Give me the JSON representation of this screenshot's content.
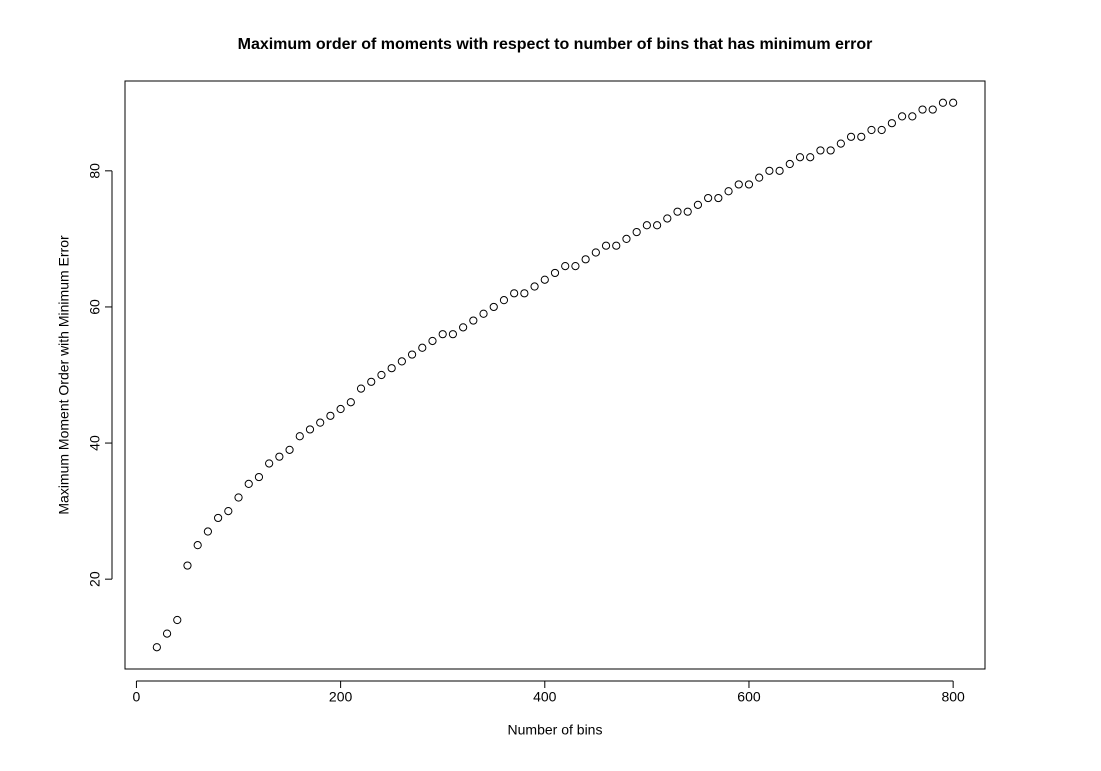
{
  "chart_data": {
    "type": "scatter",
    "title": "Maximum order of moments with respect to number of bins that has minimum error",
    "xlabel": "Number of bins",
    "ylabel": "Maximum Moment Order with Minimum Error",
    "x": [
      20,
      30,
      40,
      50,
      60,
      70,
      80,
      90,
      100,
      110,
      120,
      130,
      140,
      150,
      160,
      170,
      180,
      190,
      200,
      210,
      220,
      230,
      240,
      250,
      260,
      270,
      280,
      290,
      300,
      310,
      320,
      330,
      340,
      350,
      360,
      370,
      380,
      390,
      400,
      410,
      420,
      430,
      440,
      450,
      460,
      470,
      480,
      490,
      500,
      510,
      520,
      530,
      540,
      550,
      560,
      570,
      580,
      590,
      600,
      610,
      620,
      630,
      640,
      650,
      660,
      670,
      680,
      690,
      700,
      710,
      720,
      730,
      740,
      750,
      760,
      770,
      780,
      790,
      800
    ],
    "values": [
      10,
      12,
      14,
      22,
      25,
      27,
      29,
      30,
      32,
      34,
      35,
      37,
      38,
      39,
      41,
      42,
      43,
      44,
      45,
      46,
      48,
      49,
      50,
      51,
      52,
      53,
      54,
      55,
      56,
      56,
      57,
      58,
      59,
      60,
      61,
      62,
      62,
      63,
      64,
      65,
      66,
      66,
      67,
      68,
      69,
      69,
      70,
      71,
      72,
      72,
      73,
      74,
      74,
      75,
      76,
      76,
      77,
      78,
      78,
      79,
      80,
      80,
      81,
      82,
      82,
      83,
      83,
      84,
      85,
      85,
      86,
      86,
      87,
      88,
      88,
      89,
      89,
      90,
      90
    ],
    "color": "#000000",
    "xlim": [
      -11.2,
      831.2
    ],
    "ylim": [
      6.8,
      93.2
    ],
    "xticks": [
      0,
      200,
      400,
      600,
      800
    ],
    "yticks": [
      20,
      40,
      60,
      80
    ],
    "grid": false
  }
}
